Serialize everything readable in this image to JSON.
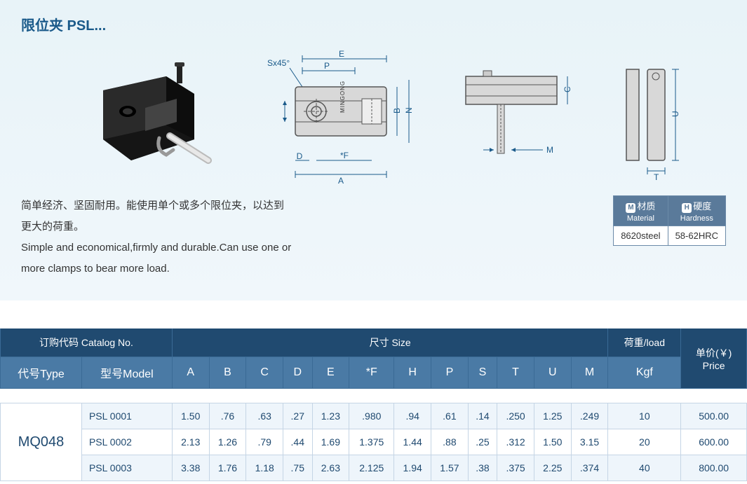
{
  "title": "限位夹 PSL...",
  "description_cn_l1": "简单经济、坚固耐用。能使用单个或多个限位夹，以达到",
  "description_cn_l2": "更大的荷重。",
  "description_en_l1": "Simple and economical,firmly and durable.Can use one or",
  "description_en_l2": "more clamps to bear more load.",
  "chamfer_label": "Sx45°",
  "dim_labels": {
    "A": "A",
    "B": "B",
    "C": "C",
    "D": "D",
    "E": "E",
    "F": "*F",
    "H": "H",
    "P": "P",
    "S": "S",
    "T": "T",
    "U": "U",
    "M": "M",
    "N": "N"
  },
  "brand_text": "MINGONG",
  "spec": {
    "material": {
      "badge": "M",
      "cn": "材质",
      "en": "Material",
      "value": "8620steel"
    },
    "hardness": {
      "badge": "H",
      "cn": "硬度",
      "en": "Hardness",
      "value": "58-62HRC"
    }
  },
  "table": {
    "headers": {
      "catalog": "订购代码 Catalog No.",
      "size": "尺寸 Size",
      "load": "荷重/load",
      "price": "单价(￥)\nPrice",
      "type": "代号Type",
      "model": "型号Model",
      "kgf": "Kgf",
      "dims": [
        "A",
        "B",
        "C",
        "D",
        "E",
        "*F",
        "H",
        "P",
        "S",
        "T",
        "U",
        "M"
      ]
    },
    "type_code": "MQ048",
    "rows": [
      {
        "model": "PSL 0001",
        "vals": [
          "1.50",
          ".76",
          ".63",
          ".27",
          "1.23",
          ".980",
          ".94",
          ".61",
          ".14",
          ".250",
          "1.25",
          ".249"
        ],
        "kgf": "10",
        "price": "500.00"
      },
      {
        "model": "PSL 0002",
        "vals": [
          "2.13",
          "1.26",
          ".79",
          ".44",
          "1.69",
          "1.375",
          "1.44",
          ".88",
          ".25",
          ".312",
          "1.50",
          "3.15"
        ],
        "kgf": "20",
        "price": "600.00"
      },
      {
        "model": "PSL 0003",
        "vals": [
          "3.38",
          "1.76",
          "1.18",
          ".75",
          "2.63",
          "2.125",
          "1.94",
          "1.57",
          ".38",
          ".375",
          "2.25",
          ".374"
        ],
        "kgf": "40",
        "price": "800.00"
      }
    ]
  },
  "colors": {
    "panel_bg": "#e8f3f8",
    "title": "#1a5a8a",
    "th_dark": "#204a70",
    "th_mid": "#4a7aa5",
    "border": "#c5d5e5"
  }
}
